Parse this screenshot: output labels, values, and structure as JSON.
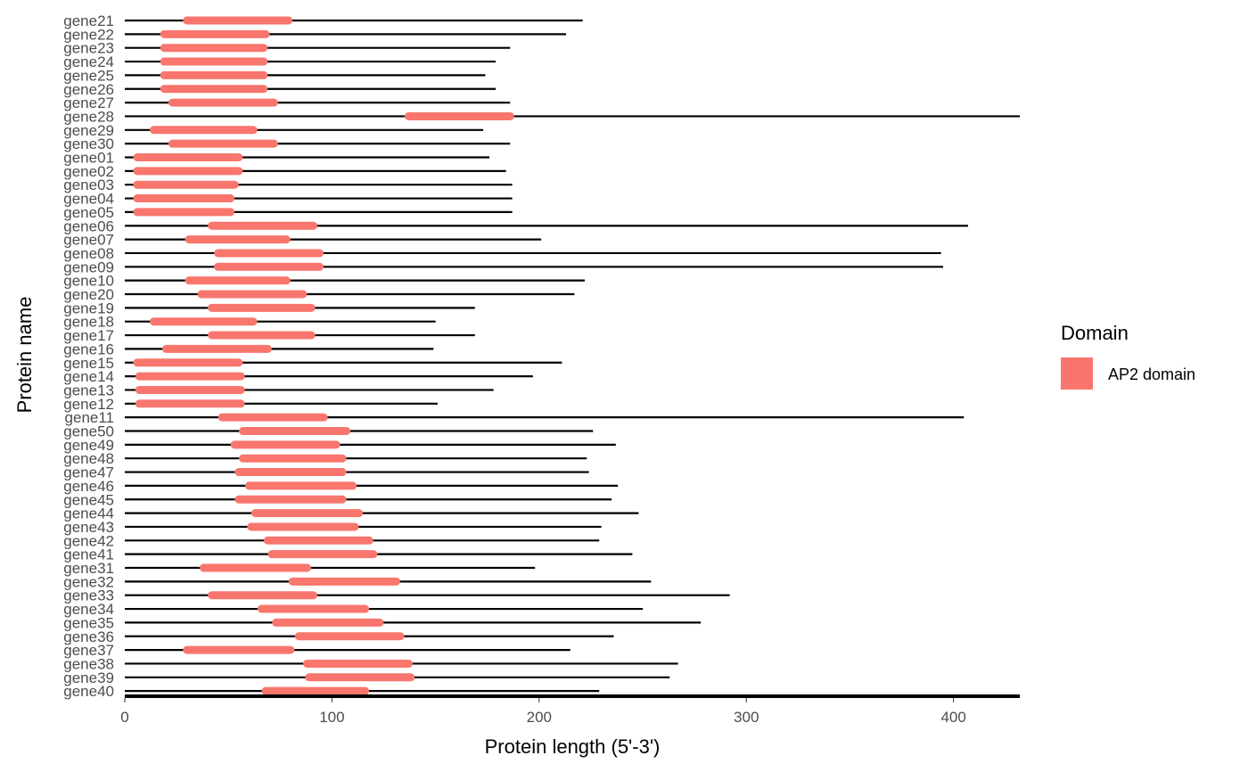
{
  "chart_data": {
    "type": "bar",
    "xlabel": "Protein length (5'-3')",
    "ylabel": "Protein name",
    "xlim": [
      0,
      432
    ],
    "xticks": [
      0,
      100,
      200,
      300,
      400
    ],
    "grid": false,
    "legend": {
      "title": "Domain",
      "placement": "right",
      "entries": [
        {
          "label": "AP2 domain",
          "color": "#F8766D"
        }
      ]
    },
    "colors": {
      "line": "#000000",
      "domain": "#F8766D"
    },
    "proteins": [
      {
        "name": "gene21",
        "length": 221,
        "domain_start": 30,
        "domain_end": 79
      },
      {
        "name": "gene22",
        "length": 213,
        "domain_start": 19,
        "domain_end": 68
      },
      {
        "name": "gene23",
        "length": 186,
        "domain_start": 19,
        "domain_end": 67
      },
      {
        "name": "gene24",
        "length": 179,
        "domain_start": 19,
        "domain_end": 67
      },
      {
        "name": "gene25",
        "length": 174,
        "domain_start": 19,
        "domain_end": 67
      },
      {
        "name": "gene26",
        "length": 179,
        "domain_start": 19,
        "domain_end": 67
      },
      {
        "name": "gene27",
        "length": 186,
        "domain_start": 23,
        "domain_end": 72
      },
      {
        "name": "gene28",
        "length": 432,
        "domain_start": 137,
        "domain_end": 186
      },
      {
        "name": "gene29",
        "length": 173,
        "domain_start": 14,
        "domain_end": 62
      },
      {
        "name": "gene30",
        "length": 186,
        "domain_start": 23,
        "domain_end": 72
      },
      {
        "name": "gene01",
        "length": 176,
        "domain_start": 6,
        "domain_end": 55
      },
      {
        "name": "gene02",
        "length": 184,
        "domain_start": 6,
        "domain_end": 55
      },
      {
        "name": "gene03",
        "length": 187,
        "domain_start": 6,
        "domain_end": 53
      },
      {
        "name": "gene04",
        "length": 187,
        "domain_start": 6,
        "domain_end": 51
      },
      {
        "name": "gene05",
        "length": 187,
        "domain_start": 6,
        "domain_end": 51
      },
      {
        "name": "gene06",
        "length": 407,
        "domain_start": 42,
        "domain_end": 91
      },
      {
        "name": "gene07",
        "length": 201,
        "domain_start": 31,
        "domain_end": 78
      },
      {
        "name": "gene08",
        "length": 394,
        "domain_start": 45,
        "domain_end": 94
      },
      {
        "name": "gene09",
        "length": 395,
        "domain_start": 45,
        "domain_end": 94
      },
      {
        "name": "gene10",
        "length": 222,
        "domain_start": 31,
        "domain_end": 78
      },
      {
        "name": "gene20",
        "length": 217,
        "domain_start": 37,
        "domain_end": 86
      },
      {
        "name": "gene19",
        "length": 169,
        "domain_start": 42,
        "domain_end": 90
      },
      {
        "name": "gene18",
        "length": 150,
        "domain_start": 14,
        "domain_end": 62
      },
      {
        "name": "gene17",
        "length": 169,
        "domain_start": 42,
        "domain_end": 90
      },
      {
        "name": "gene16",
        "length": 149,
        "domain_start": 20,
        "domain_end": 69
      },
      {
        "name": "gene15",
        "length": 211,
        "domain_start": 6,
        "domain_end": 55
      },
      {
        "name": "gene14",
        "length": 197,
        "domain_start": 7,
        "domain_end": 56
      },
      {
        "name": "gene13",
        "length": 178,
        "domain_start": 7,
        "domain_end": 56
      },
      {
        "name": "gene12",
        "length": 151,
        "domain_start": 7,
        "domain_end": 56
      },
      {
        "name": "gene11",
        "length": 405,
        "domain_start": 47,
        "domain_end": 96
      },
      {
        "name": "gene50",
        "length": 226,
        "domain_start": 57,
        "domain_end": 107
      },
      {
        "name": "gene49",
        "length": 237,
        "domain_start": 53,
        "domain_end": 102
      },
      {
        "name": "gene48",
        "length": 223,
        "domain_start": 57,
        "domain_end": 105
      },
      {
        "name": "gene47",
        "length": 224,
        "domain_start": 55,
        "domain_end": 105
      },
      {
        "name": "gene46",
        "length": 238,
        "domain_start": 60,
        "domain_end": 110
      },
      {
        "name": "gene45",
        "length": 235,
        "domain_start": 55,
        "domain_end": 105
      },
      {
        "name": "gene44",
        "length": 248,
        "domain_start": 63,
        "domain_end": 113
      },
      {
        "name": "gene43",
        "length": 230,
        "domain_start": 61,
        "domain_end": 111
      },
      {
        "name": "gene42",
        "length": 229,
        "domain_start": 69,
        "domain_end": 118
      },
      {
        "name": "gene41",
        "length": 245,
        "domain_start": 71,
        "domain_end": 120
      },
      {
        "name": "gene31",
        "length": 198,
        "domain_start": 38,
        "domain_end": 88
      },
      {
        "name": "gene32",
        "length": 254,
        "domain_start": 81,
        "domain_end": 131
      },
      {
        "name": "gene33",
        "length": 292,
        "domain_start": 42,
        "domain_end": 91
      },
      {
        "name": "gene34",
        "length": 250,
        "domain_start": 66,
        "domain_end": 116
      },
      {
        "name": "gene35",
        "length": 278,
        "domain_start": 73,
        "domain_end": 123
      },
      {
        "name": "gene36",
        "length": 236,
        "domain_start": 84,
        "domain_end": 133
      },
      {
        "name": "gene37",
        "length": 215,
        "domain_start": 30,
        "domain_end": 80
      },
      {
        "name": "gene38",
        "length": 267,
        "domain_start": 88,
        "domain_end": 137
      },
      {
        "name": "gene39",
        "length": 263,
        "domain_start": 89,
        "domain_end": 138
      },
      {
        "name": "gene40",
        "length": 229,
        "domain_start": 68,
        "domain_end": 116
      }
    ]
  }
}
